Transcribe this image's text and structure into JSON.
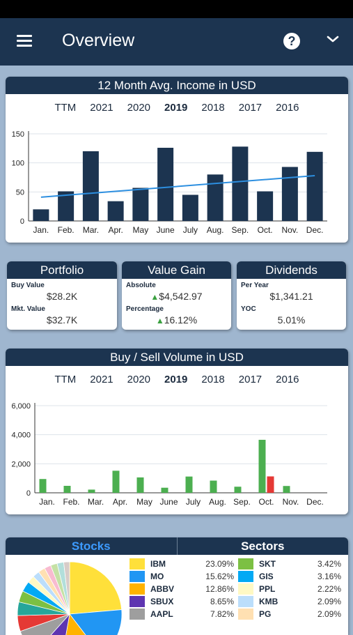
{
  "app": {
    "title": "Overview"
  },
  "icons": {
    "menu": "menu-icon",
    "help": "help-icon",
    "dropdown": "chevron-down-icon"
  },
  "help_label": "?",
  "colors": {
    "navy": "#1c3450",
    "trend": "#2d8fe0",
    "buy": "#4caf50",
    "sell": "#e53935",
    "accent": "#3d9bff"
  },
  "year_tabs": [
    "TTM",
    "2021",
    "2020",
    "2019",
    "2018",
    "2017",
    "2016"
  ],
  "selected_year": "2019",
  "income_card": {
    "title": "12 Month Avg. Income in USD"
  },
  "portfolio": {
    "title": "Portfolio",
    "buy_label": "Buy Value",
    "buy_value": "$28.2K",
    "mkt_label": "Mkt. Value",
    "mkt_value": "$32.7K"
  },
  "value_gain": {
    "title": "Value Gain",
    "abs_label": "Absolute",
    "abs_value": "$4,542.97",
    "pct_label": "Percentage",
    "pct_value": "16.12%",
    "arrow": "▲"
  },
  "dividends": {
    "title": "Dividends",
    "year_label": "Per Year",
    "year_value": "$1,341.21",
    "yoc_label": "YOC",
    "yoc_value": "5.01%"
  },
  "volume_card": {
    "title": "Buy / Sell Volume in USD"
  },
  "allocation": {
    "tab_stocks": "Stocks",
    "tab_sectors": "Sectors",
    "stocks": [
      {
        "name": "IBM",
        "pct": "23.09%",
        "color": "#ffe03a"
      },
      {
        "name": "MO",
        "pct": "15.62%",
        "color": "#2196f3"
      },
      {
        "name": "ABBV",
        "pct": "12.86%",
        "color": "#ffb300"
      },
      {
        "name": "SBUX",
        "pct": "8.65%",
        "color": "#5e35b1"
      },
      {
        "name": "AAPL",
        "pct": "7.82%",
        "color": "#9e9e9e"
      }
    ],
    "stocks2": [
      {
        "name": "SKT",
        "pct": "3.42%",
        "color": "#7cc043"
      },
      {
        "name": "GIS",
        "pct": "3.16%",
        "color": "#03a9f4"
      },
      {
        "name": "PPL",
        "pct": "2.22%",
        "color": "#fff9c4"
      },
      {
        "name": "KMB",
        "pct": "2.09%",
        "color": "#bbdefb"
      },
      {
        "name": "PG",
        "pct": "2.09%",
        "color": "#ffe0b2"
      }
    ]
  },
  "chart_data": [
    {
      "type": "bar",
      "title": "12 Month Avg. Income in USD",
      "categories": [
        "Jan.",
        "Feb.",
        "Mar.",
        "Apr.",
        "May",
        "June",
        "July",
        "Aug.",
        "Sep.",
        "Oct.",
        "Nov.",
        "Dec."
      ],
      "series": [
        {
          "values": [
            20,
            51,
            120,
            34,
            57,
            126,
            45,
            80,
            128,
            51,
            93,
            119
          ]
        }
      ],
      "trend": {
        "start": 41,
        "end": 78
      },
      "ylim": [
        0,
        150
      ],
      "yticks": [
        "0",
        "50",
        "100",
        "150"
      ]
    },
    {
      "type": "bar",
      "title": "Buy / Sell Volume in USD",
      "categories": [
        "Jan.",
        "Feb.",
        "Mar.",
        "Apr.",
        "May",
        "June",
        "July",
        "Aug.",
        "Sep.",
        "Oct.",
        "Nov.",
        "Dec."
      ],
      "series": [
        {
          "values": [
            950,
            480,
            220,
            1520,
            1060,
            350,
            1120,
            840,
            420,
            3650,
            470,
            0
          ]
        },
        {
          "values": [
            0,
            0,
            0,
            0,
            0,
            0,
            0,
            0,
            0,
            1130,
            0,
            0
          ]
        }
      ],
      "ylim": [
        0,
        6000
      ],
      "yticks": [
        "0",
        "2,000",
        "4,000",
        "6,000"
      ]
    },
    {
      "type": "pie",
      "slices": [
        23.09,
        15.62,
        12.86,
        8.65,
        7.82,
        4.8,
        4.1,
        3.42,
        3.16,
        2.22,
        2.09,
        2.09,
        2.0,
        2.0,
        2.0,
        1.78
      ],
      "colors": [
        "#ffe03a",
        "#2196f3",
        "#ffb300",
        "#5e35b1",
        "#9e9e9e",
        "#e53935",
        "#26a69a",
        "#7cc043",
        "#03a9f4",
        "#fff9c4",
        "#bbdefb",
        "#ffe0b2",
        "#f8bbd0",
        "#c5e1a5",
        "#b2dfdb",
        "#d7ccc8"
      ]
    }
  ]
}
